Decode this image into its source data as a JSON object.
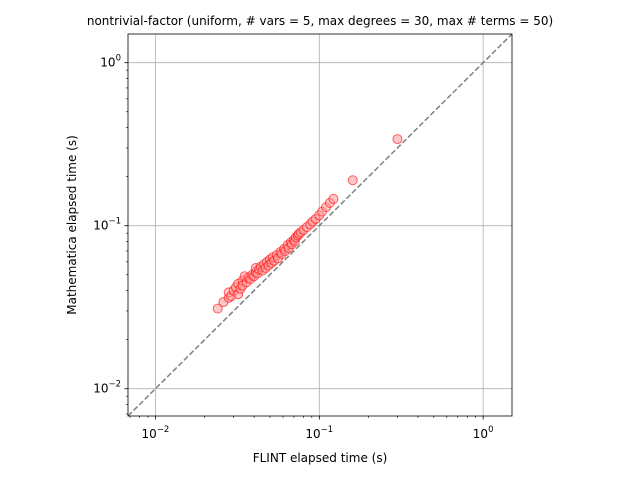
{
  "chart_data": {
    "type": "scatter",
    "title": "nontrivial-factor (uniform, # vars = 5, max degrees = 30, max # terms = 50)",
    "xlabel": "FLINT elapsed time (s)",
    "ylabel": "Mathematica elapsed time (s)",
    "xscale": "log",
    "yscale": "log",
    "xlim": [
      0.0068,
      1.5
    ],
    "ylim": [
      0.0068,
      1.5
    ],
    "grid": true,
    "x_ticks": [
      {
        "base": "10",
        "exp": "−2",
        "value": 0.01
      },
      {
        "base": "10",
        "exp": "−1",
        "value": 0.1
      },
      {
        "base": "10",
        "exp": "0",
        "value": 1
      }
    ],
    "y_ticks": [
      {
        "base": "10",
        "exp": "−2",
        "value": 0.01
      },
      {
        "base": "10",
        "exp": "−1",
        "value": 0.1
      },
      {
        "base": "10",
        "exp": "0",
        "value": 1
      }
    ],
    "reference_line": {
      "style": "dashed",
      "color": "#808080",
      "relation": "y = x"
    },
    "marker_edge_color": "#ff0000",
    "marker_face_color": "#ff9999",
    "points": [
      [
        0.024,
        0.031
      ],
      [
        0.026,
        0.034
      ],
      [
        0.028,
        0.036
      ],
      [
        0.028,
        0.039
      ],
      [
        0.029,
        0.037
      ],
      [
        0.03,
        0.04
      ],
      [
        0.031,
        0.042
      ],
      [
        0.032,
        0.038
      ],
      [
        0.032,
        0.044
      ],
      [
        0.033,
        0.041
      ],
      [
        0.034,
        0.046
      ],
      [
        0.034,
        0.043
      ],
      [
        0.035,
        0.049
      ],
      [
        0.036,
        0.045
      ],
      [
        0.037,
        0.048
      ],
      [
        0.038,
        0.047
      ],
      [
        0.039,
        0.05
      ],
      [
        0.04,
        0.049
      ],
      [
        0.041,
        0.052
      ],
      [
        0.041,
        0.055
      ],
      [
        0.042,
        0.051
      ],
      [
        0.043,
        0.054
      ],
      [
        0.044,
        0.056
      ],
      [
        0.045,
        0.053
      ],
      [
        0.046,
        0.058
      ],
      [
        0.047,
        0.055
      ],
      [
        0.048,
        0.06
      ],
      [
        0.049,
        0.057
      ],
      [
        0.05,
        0.062
      ],
      [
        0.051,
        0.059
      ],
      [
        0.052,
        0.064
      ],
      [
        0.053,
        0.061
      ],
      [
        0.055,
        0.066
      ],
      [
        0.056,
        0.063
      ],
      [
        0.058,
        0.069
      ],
      [
        0.059,
        0.067
      ],
      [
        0.061,
        0.072
      ],
      [
        0.062,
        0.07
      ],
      [
        0.064,
        0.076
      ],
      [
        0.065,
        0.073
      ],
      [
        0.067,
        0.079
      ],
      [
        0.068,
        0.077
      ],
      [
        0.07,
        0.082
      ],
      [
        0.071,
        0.08
      ],
      [
        0.072,
        0.085
      ],
      [
        0.074,
        0.087
      ],
      [
        0.075,
        0.089
      ],
      [
        0.077,
        0.091
      ],
      [
        0.08,
        0.094
      ],
      [
        0.084,
        0.098
      ],
      [
        0.088,
        0.102
      ],
      [
        0.091,
        0.106
      ],
      [
        0.095,
        0.11
      ],
      [
        0.1,
        0.116
      ],
      [
        0.104,
        0.122
      ],
      [
        0.11,
        0.13
      ],
      [
        0.116,
        0.138
      ],
      [
        0.122,
        0.146
      ],
      [
        0.16,
        0.19
      ],
      [
        0.3,
        0.34
      ]
    ]
  }
}
